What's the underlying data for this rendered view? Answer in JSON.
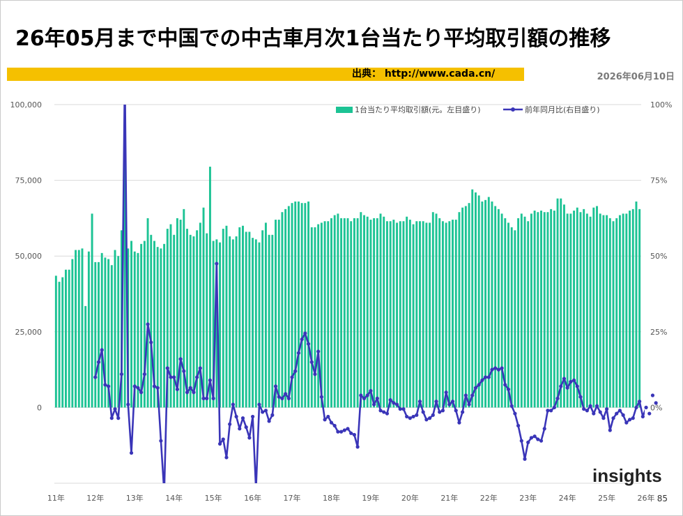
{
  "page": {
    "title": "26年05月まで中国での中古車月次1台当たり平均取引額の推移",
    "source": "出典： http://www.cada.cn/",
    "date": "2026年06月10日",
    "page_number": "85",
    "logo_text": "insights"
  },
  "colors": {
    "bar": "#1cc394",
    "line": "#3a35b8",
    "title_bar": "#f5c000",
    "grid": "#d9d9d9"
  },
  "chart_data": {
    "type": "bar+line",
    "left_axis": {
      "ticks": [
        "100,000",
        "75,000",
        "50,000",
        "25,000",
        "0"
      ],
      "range": [
        -25000,
        100000
      ]
    },
    "right_axis": {
      "ticks": [
        "100%",
        "75%",
        "50%",
        "25%",
        "0%"
      ],
      "range": [
        -25,
        100
      ]
    },
    "x_labels": [
      "11年",
      "12年",
      "13年",
      "14年",
      "15年",
      "16年",
      "17年",
      "18年",
      "19年",
      "20年",
      "21年",
      "22年",
      "23年",
      "24年",
      "25年",
      "26年"
    ],
    "start_month": "2011-01",
    "series": [
      {
        "name": "1台当たり平均取引額(元。左目盛り)",
        "type": "bar",
        "values": [
          43500,
          41500,
          43000,
          45500,
          45500,
          49000,
          52000,
          52000,
          52500,
          33500,
          51500,
          64000,
          48000,
          48000,
          51000,
          49500,
          49000,
          47000,
          52000,
          50000,
          58500,
          82000,
          52500,
          55000,
          51500,
          51000,
          54000,
          55000,
          62500,
          57000,
          55000,
          53000,
          52500,
          54000,
          59000,
          60500,
          57000,
          62500,
          62000,
          65500,
          59000,
          57000,
          56500,
          58500,
          61000,
          66000,
          57500,
          79500,
          55000,
          55500,
          54500,
          59000,
          60000,
          56500,
          55500,
          56500,
          59500,
          60000,
          58000,
          58000,
          56000,
          55500,
          54500,
          58500,
          61000,
          57000,
          57000,
          62000,
          62000,
          64500,
          65500,
          66500,
          67500,
          68000,
          68000,
          67500,
          67500,
          68000,
          59500,
          59500,
          60500,
          61000,
          61500,
          61500,
          62500,
          63500,
          64000,
          62500,
          62500,
          62500,
          61500,
          62500,
          62500,
          64500,
          63500,
          63000,
          62000,
          62500,
          62500,
          64000,
          63000,
          61500,
          61500,
          62000,
          61000,
          61500,
          61500,
          63000,
          62000,
          60500,
          61500,
          61500,
          61500,
          61000,
          61000,
          64500,
          64000,
          62500,
          61500,
          61000,
          61500,
          62000,
          62000,
          64500,
          66000,
          66500,
          67500,
          72000,
          71000,
          70000,
          68000,
          68500,
          69500,
          68000,
          66500,
          65500,
          64000,
          62500,
          61000,
          59500,
          58500,
          62500,
          64000,
          63000,
          61500,
          64000,
          65000,
          64500,
          65000,
          64500,
          64500,
          65500,
          65000,
          69000,
          69000,
          67000,
          64000,
          64000,
          65000,
          66000,
          64500,
          65500,
          64000,
          63000,
          66000,
          66500,
          64000,
          63500,
          63500,
          62500,
          61500,
          62500,
          63500,
          64000,
          64000,
          65000,
          65500,
          68000,
          65500
        ]
      },
      {
        "name": "前年同月比(右目盛り)",
        "type": "line",
        "start_index": 12,
        "values": [
          10,
          15,
          19,
          7.5,
          7,
          -3.5,
          -0.5,
          -3.5,
          11,
          110,
          1,
          -15,
          7,
          6.5,
          5,
          11,
          27.5,
          21.5,
          7,
          6.5,
          -11,
          -28,
          13,
          10,
          10,
          6,
          16,
          12,
          5,
          6.5,
          5,
          10,
          13,
          3,
          3,
          9,
          3,
          47.5,
          -12,
          -10.5,
          -16.5,
          -5.5,
          1,
          -3,
          -7,
          -3.5,
          -6.5,
          -10,
          -3,
          -27,
          1,
          -1.5,
          -1,
          -4.5,
          -2.5,
          7,
          3.5,
          3,
          4.5,
          3,
          10,
          12,
          18,
          22.5,
          24.5,
          21,
          15,
          11,
          18.5,
          3.5,
          -4,
          -3,
          -5,
          -6,
          -8,
          -8,
          -7.5,
          -7,
          -8.5,
          -9,
          -13,
          4,
          3,
          4,
          5.5,
          1,
          3,
          -1,
          -1.5,
          -2,
          2.5,
          1.5,
          1,
          -0.5,
          -0.5,
          -3,
          -3.5,
          -3,
          -2.5,
          2,
          -1.5,
          -4,
          -3.5,
          -2.5,
          2,
          -1.5,
          -1,
          5,
          1,
          2,
          -1,
          -5,
          -1.5,
          4,
          1,
          4,
          6.5,
          7.5,
          9,
          10,
          10,
          12.5,
          13,
          12.5,
          13,
          7.5,
          6,
          0.5,
          -2,
          -6,
          -11,
          -17,
          -11.5,
          -10,
          -9.5,
          -10.5,
          -11,
          -7,
          -1,
          -1,
          0,
          3,
          7,
          9.5,
          6.5,
          8.5,
          9,
          7,
          3.5,
          -0.5,
          -1,
          0.5,
          -2,
          0.5,
          -1.5,
          -3.5,
          -0.5,
          -7.5,
          -3.5,
          -2,
          -1,
          -2.5,
          -5,
          -4,
          -3.5,
          0,
          2,
          -3,
          0,
          -2,
          4,
          1.5
        ]
      }
    ],
    "legend_position": "top-right",
    "grid": true
  }
}
